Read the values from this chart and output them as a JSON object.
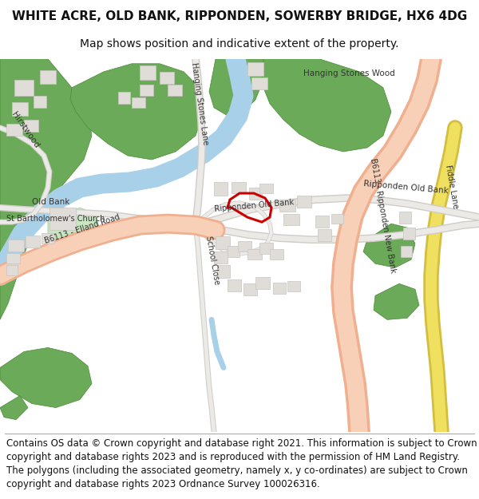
{
  "title_line1": "WHITE ACRE, OLD BANK, RIPPONDEN, SOWERBY BRIDGE, HX6 4DG",
  "title_line2": "Map shows position and indicative extent of the property.",
  "copyright_text": "Contains OS data © Crown copyright and database right 2021. This information is subject to Crown copyright and database rights 2023 and is reproduced with the permission of HM Land Registry. The polygons (including the associated geometry, namely x, y co-ordinates) are subject to Crown copyright and database rights 2023 Ordnance Survey 100026316.",
  "title_fontsize": 11,
  "subtitle_fontsize": 10,
  "copyright_fontsize": 8.5,
  "bg_color": "#ffffff",
  "map_bg": "#f8f8f8",
  "green_color": "#6aaa58",
  "light_green": "#c8e6c0",
  "blue_color": "#a8d0e8",
  "road_salmon": "#f0b090",
  "road_salmon_fill": "#f8d0b8",
  "yellow_road": "#f0e060",
  "yellow_road_edge": "#d8c840",
  "building_color": "#e0ddd8",
  "building_edge": "#c8c5c0",
  "red_poly": "#cc0000",
  "minor_road_color": "#e8e4e0",
  "minor_road_edge": "#c8c4c0"
}
